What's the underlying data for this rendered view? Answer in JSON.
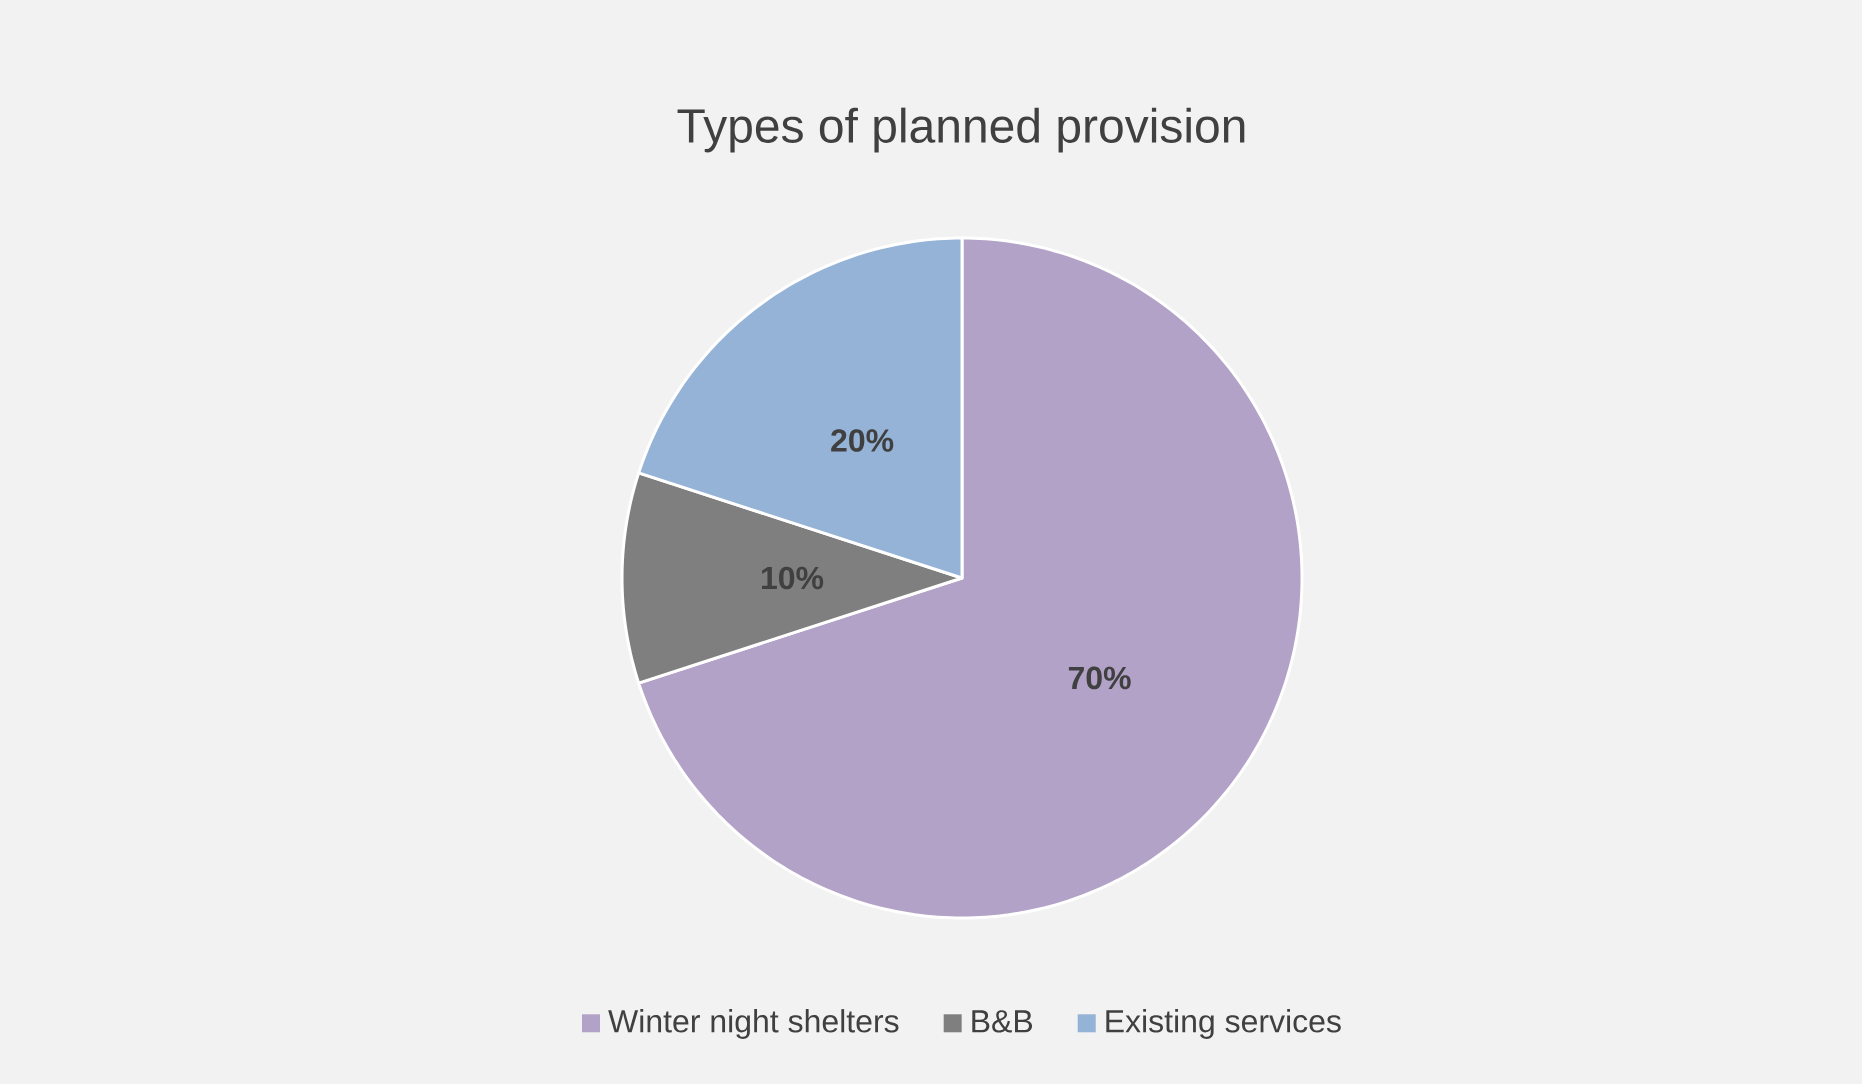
{
  "chart_data": {
    "type": "pie",
    "title": "Types of planned provision",
    "categories": [
      "Winter night shelters",
      "B&B",
      "Existing services"
    ],
    "values": [
      70,
      10,
      20
    ],
    "colors": [
      "#b3a2c7",
      "#7f7f7f",
      "#95b3d7"
    ],
    "value_labels": [
      "70%",
      "10%",
      "20%"
    ],
    "legend": "bottom"
  }
}
